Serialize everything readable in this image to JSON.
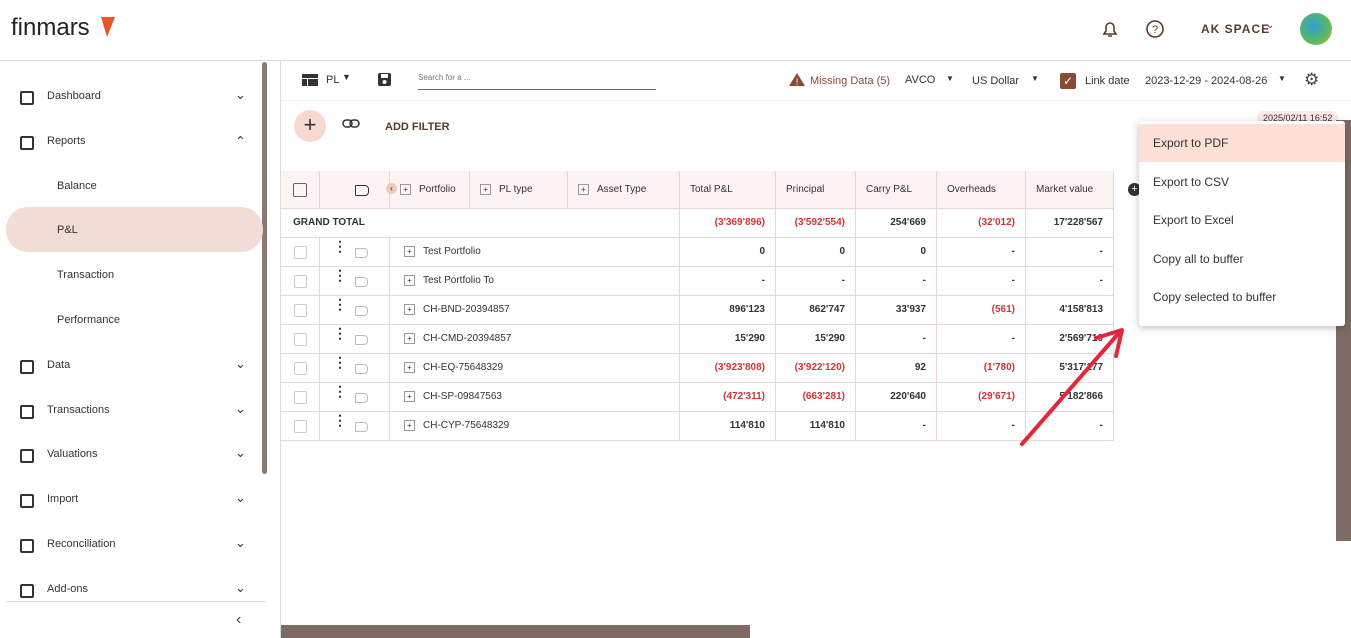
{
  "header": {
    "logo": "finmars",
    "space": "AK SPACE"
  },
  "sidebar": {
    "items": [
      {
        "label": "Dashboard"
      },
      {
        "label": "Reports",
        "children": [
          "Balance",
          "P&L",
          "Transaction",
          "Performance"
        ]
      },
      {
        "label": "Data"
      },
      {
        "label": "Transactions"
      },
      {
        "label": "Valuations"
      },
      {
        "label": "Import"
      },
      {
        "label": "Reconciliation"
      },
      {
        "label": "Add-ons"
      }
    ]
  },
  "toolbar": {
    "layout": "PL",
    "search": "Search for a ...",
    "missing": "Missing Data (5)",
    "method": "AVCO",
    "currency": "US Dollar",
    "link": "Link date",
    "range": "2023-12-29 - 2024-08-26"
  },
  "filter": {
    "add": "ADD FILTER",
    "timestamp": "2025/02/11 16:52"
  },
  "table": {
    "columns": [
      "Portfolio",
      "PL type",
      "Asset Type",
      "Total P&L",
      "Principal",
      "Carry P&L",
      "Overheads",
      "Market value"
    ],
    "grand_total": {
      "label": "GRAND TOTAL",
      "values": [
        "(3'369'896)",
        "(3'592'554)",
        "254'669",
        "(32'012)",
        "17'228'567"
      ]
    },
    "rows": [
      {
        "name": "Test Portfolio",
        "values": [
          "0",
          "0",
          "0",
          "-",
          "-"
        ]
      },
      {
        "name": "Test Portfolio To",
        "values": [
          "-",
          "-",
          "-",
          "-",
          "-"
        ]
      },
      {
        "name": "CH-BND-20394857",
        "values": [
          "896'123",
          "862'747",
          "33'937",
          "(561)",
          "4'158'813"
        ]
      },
      {
        "name": "CH-CMD-20394857",
        "values": [
          "15'290",
          "15'290",
          "-",
          "-",
          "2'569'710"
        ]
      },
      {
        "name": "CH-EQ-75648329",
        "values": [
          "(3'923'808)",
          "(3'922'120)",
          "92",
          "(1'780)",
          "5'317'177"
        ]
      },
      {
        "name": "CH-SP-09847563",
        "values": [
          "(472'311)",
          "(663'281)",
          "220'640",
          "(29'671)",
          "5'182'866"
        ]
      },
      {
        "name": "CH-CYP-75648329",
        "values": [
          "114'810",
          "114'810",
          "-",
          "-",
          "-"
        ]
      }
    ]
  },
  "export_menu": {
    "items": [
      "Export to PDF",
      "Export to CSV",
      "Export to Excel",
      "Copy all to buffer",
      "Copy selected to buffer"
    ]
  }
}
